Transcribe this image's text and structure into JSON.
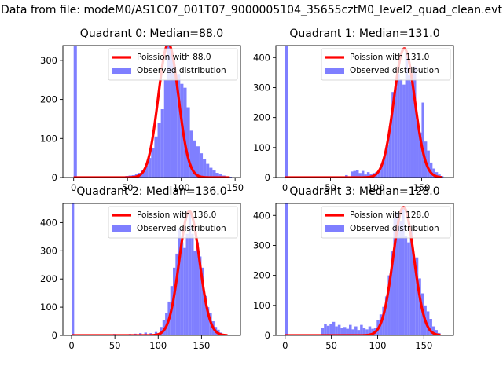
{
  "figure_title": "Data from file: modeM0/AS1C07_001T07_9000005104_35655cztM0_level2_quad_clean.evt",
  "colors": {
    "bars": "#7f7fff",
    "fit": "#ff0000",
    "axis": "#000000",
    "legend_border": "#cccccc"
  },
  "chart_data": [
    {
      "type": "bar",
      "title": "Quadrant 0: Median=88.0",
      "xlim": [
        -10,
        155
      ],
      "ylim": [
        0,
        338
      ],
      "xticks": [
        0,
        50,
        100,
        150
      ],
      "yticks": [
        0,
        100,
        200,
        300
      ],
      "legend": {
        "position": "top-right",
        "entries": [
          "Poission with 88.0",
          "Observed distribution"
        ]
      },
      "histogram": {
        "bin_width": 3,
        "bins": [
          [
            0,
            340
          ],
          [
            33,
            2
          ],
          [
            39,
            2
          ],
          [
            42,
            2
          ],
          [
            45,
            3
          ],
          [
            48,
            4
          ],
          [
            51,
            5
          ],
          [
            54,
            6
          ],
          [
            57,
            8
          ],
          [
            60,
            12
          ],
          [
            63,
            18
          ],
          [
            66,
            30
          ],
          [
            69,
            50
          ],
          [
            72,
            75
          ],
          [
            75,
            105
          ],
          [
            78,
            140
          ],
          [
            81,
            175
          ],
          [
            84,
            250
          ],
          [
            87,
            338
          ],
          [
            90,
            310
          ],
          [
            93,
            270
          ],
          [
            96,
            265
          ],
          [
            99,
            240
          ],
          [
            102,
            230
          ],
          [
            105,
            180
          ],
          [
            108,
            120
          ],
          [
            111,
            95
          ],
          [
            114,
            80
          ],
          [
            117,
            62
          ],
          [
            120,
            48
          ],
          [
            123,
            35
          ],
          [
            126,
            25
          ],
          [
            129,
            18
          ],
          [
            132,
            12
          ],
          [
            135,
            8
          ],
          [
            138,
            5
          ],
          [
            141,
            3
          ],
          [
            144,
            2
          ]
        ]
      },
      "fit": {
        "label": "Poission with 88.0",
        "mean": 88.0,
        "peak": 342,
        "x_range": [
          0,
          145
        ]
      }
    },
    {
      "type": "bar",
      "title": "Quadrant 1: Median=131.0",
      "xlim": [
        -10,
        185
      ],
      "ylim": [
        0,
        440
      ],
      "xticks": [
        0,
        50,
        100,
        150
      ],
      "yticks": [
        0,
        100,
        200,
        300,
        400
      ],
      "legend": {
        "position": "top-right",
        "entries": [
          "Poission with 131.0",
          "Observed distribution"
        ]
      },
      "histogram": {
        "bin_width": 3,
        "bins": [
          [
            0,
            440
          ],
          [
            60,
            3
          ],
          [
            66,
            8
          ],
          [
            72,
            20
          ],
          [
            75,
            22
          ],
          [
            78,
            25
          ],
          [
            81,
            15
          ],
          [
            84,
            22
          ],
          [
            87,
            10
          ],
          [
            90,
            18
          ],
          [
            93,
            12
          ],
          [
            96,
            15
          ],
          [
            99,
            18
          ],
          [
            102,
            25
          ],
          [
            105,
            45
          ],
          [
            108,
            70
          ],
          [
            111,
            110
          ],
          [
            114,
            170
          ],
          [
            117,
            285
          ],
          [
            120,
            300
          ],
          [
            123,
            345
          ],
          [
            126,
            330
          ],
          [
            129,
            310
          ],
          [
            132,
            420
          ],
          [
            135,
            340
          ],
          [
            138,
            320
          ],
          [
            141,
            370
          ],
          [
            144,
            190
          ],
          [
            147,
            150
          ],
          [
            150,
            250
          ],
          [
            153,
            120
          ],
          [
            156,
            90
          ],
          [
            159,
            50
          ],
          [
            162,
            30
          ],
          [
            165,
            18
          ],
          [
            168,
            10
          ],
          [
            171,
            5
          ]
        ]
      },
      "fit": {
        "label": "Poission with 131.0",
        "mean": 131.0,
        "peak": 430,
        "x_range": [
          0,
          172
        ]
      }
    },
    {
      "type": "bar",
      "title": "Quadrant 2: Median=136.0",
      "xlim": [
        -10,
        195
      ],
      "ylim": [
        0,
        468
      ],
      "xticks": [
        0,
        50,
        100,
        150
      ],
      "yticks": [
        0,
        100,
        200,
        300,
        400
      ],
      "legend": {
        "position": "top-right",
        "entries": [
          "Poission with 136.0",
          "Observed distribution"
        ]
      },
      "histogram": {
        "bin_width": 3,
        "bins": [
          [
            0,
            468
          ],
          [
            24,
            3
          ],
          [
            36,
            4
          ],
          [
            48,
            5
          ],
          [
            60,
            4
          ],
          [
            66,
            5
          ],
          [
            72,
            6
          ],
          [
            78,
            8
          ],
          [
            84,
            10
          ],
          [
            90,
            8
          ],
          [
            96,
            12
          ],
          [
            102,
            30
          ],
          [
            105,
            55
          ],
          [
            108,
            80
          ],
          [
            111,
            120
          ],
          [
            114,
            175
          ],
          [
            117,
            240
          ],
          [
            120,
            290
          ],
          [
            123,
            380
          ],
          [
            126,
            330
          ],
          [
            129,
            310
          ],
          [
            132,
            360
          ],
          [
            135,
            430
          ],
          [
            138,
            360
          ],
          [
            141,
            300
          ],
          [
            144,
            330
          ],
          [
            147,
            280
          ],
          [
            150,
            240
          ],
          [
            153,
            140
          ],
          [
            156,
            100
          ],
          [
            159,
            80
          ],
          [
            162,
            50
          ],
          [
            165,
            30
          ],
          [
            168,
            20
          ],
          [
            171,
            10
          ],
          [
            174,
            5
          ],
          [
            177,
            3
          ]
        ]
      },
      "fit": {
        "label": "Poission with 136.0",
        "mean": 136.0,
        "peak": 440,
        "x_range": [
          0,
          180
        ]
      }
    },
    {
      "type": "bar",
      "title": "Quadrant 3: Median=128.0",
      "xlim": [
        -10,
        182
      ],
      "ylim": [
        0,
        440
      ],
      "xticks": [
        0,
        50,
        100,
        150
      ],
      "yticks": [
        0,
        100,
        200,
        300,
        400
      ],
      "legend": {
        "position": "top-right",
        "entries": [
          "Poission with 128.0",
          "Observed distribution"
        ]
      },
      "histogram": {
        "bin_width": 3,
        "bins": [
          [
            0,
            440
          ],
          [
            39,
            25
          ],
          [
            42,
            38
          ],
          [
            45,
            32
          ],
          [
            48,
            38
          ],
          [
            51,
            45
          ],
          [
            54,
            30
          ],
          [
            57,
            35
          ],
          [
            60,
            25
          ],
          [
            63,
            28
          ],
          [
            66,
            22
          ],
          [
            69,
            35
          ],
          [
            72,
            20
          ],
          [
            75,
            30
          ],
          [
            78,
            18
          ],
          [
            81,
            35
          ],
          [
            84,
            25
          ],
          [
            87,
            20
          ],
          [
            90,
            30
          ],
          [
            93,
            22
          ],
          [
            96,
            25
          ],
          [
            99,
            50
          ],
          [
            102,
            70
          ],
          [
            105,
            95
          ],
          [
            108,
            130
          ],
          [
            111,
            200
          ],
          [
            114,
            280
          ],
          [
            117,
            390
          ],
          [
            120,
            410
          ],
          [
            123,
            380
          ],
          [
            126,
            430
          ],
          [
            129,
            330
          ],
          [
            132,
            310
          ],
          [
            135,
            350
          ],
          [
            138,
            240
          ],
          [
            141,
            260
          ],
          [
            144,
            190
          ],
          [
            147,
            140
          ],
          [
            150,
            100
          ],
          [
            153,
            80
          ],
          [
            156,
            55
          ],
          [
            159,
            30
          ],
          [
            162,
            18
          ],
          [
            165,
            8
          ]
        ]
      },
      "fit": {
        "label": "Poission with 128.0",
        "mean": 128.0,
        "peak": 428,
        "x_range": [
          0,
          168
        ]
      }
    }
  ]
}
